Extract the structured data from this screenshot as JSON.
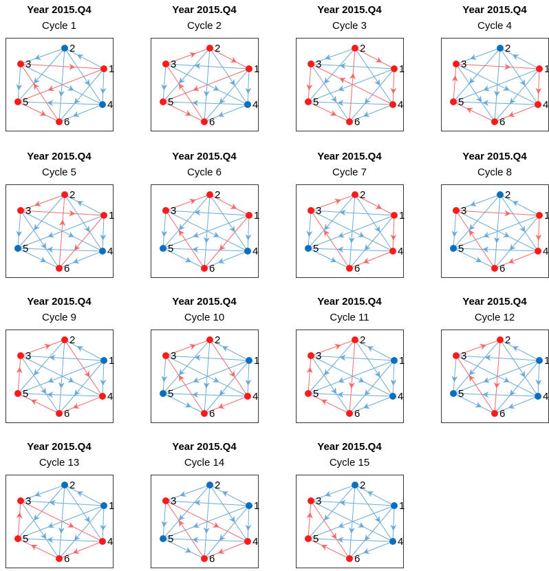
{
  "node_labels": [
    "1",
    "2",
    "3",
    "4",
    "5",
    "6"
  ],
  "node_colors": {
    "in_cycle": "#ff1a1a",
    "other": "#0b6fbf"
  },
  "edge_colors": {
    "in_cycle": "#f26a6a",
    "other": "#6aaad8"
  },
  "panels": [
    {
      "title": "Year 2015.Q4",
      "subtitle": "Cycle 1",
      "cycle": [
        "3",
        "1",
        "5",
        "6"
      ]
    },
    {
      "title": "Year 2015.Q4",
      "subtitle": "Cycle 2",
      "cycle": [
        "3",
        "2",
        "1",
        "5",
        "6"
      ]
    },
    {
      "title": "Year 2015.Q4",
      "subtitle": "Cycle 3",
      "cycle": [
        "2",
        "1",
        "4",
        "3",
        "5",
        "6"
      ]
    },
    {
      "title": "Year 2015.Q4",
      "subtitle": "Cycle 4",
      "cycle": [
        "3",
        "1",
        "4",
        "6",
        "5"
      ]
    },
    {
      "title": "Year 2015.Q4",
      "subtitle": "Cycle 5",
      "cycle": [
        "3",
        "1",
        "6",
        "2"
      ]
    },
    {
      "title": "Year 2015.Q4",
      "subtitle": "Cycle 6",
      "cycle": [
        "3",
        "2",
        "1",
        "6"
      ]
    },
    {
      "title": "Year 2015.Q4",
      "subtitle": "Cycle 7",
      "cycle": [
        "3",
        "2",
        "1",
        "4",
        "6"
      ]
    },
    {
      "title": "Year 2015.Q4",
      "subtitle": "Cycle 8",
      "cycle": [
        "3",
        "1",
        "4",
        "6"
      ]
    },
    {
      "title": "Year 2015.Q4",
      "subtitle": "Cycle 9",
      "cycle": [
        "3",
        "2",
        "4",
        "6",
        "5"
      ]
    },
    {
      "title": "Year 2015.Q4",
      "subtitle": "Cycle 10",
      "cycle": [
        "3",
        "2",
        "4",
        "6"
      ]
    },
    {
      "title": "Year 2015.Q4",
      "subtitle": "Cycle 11",
      "cycle": [
        "3",
        "2",
        "6",
        "5"
      ]
    },
    {
      "title": "Year 2015.Q4",
      "subtitle": "Cycle 12",
      "cycle": [
        "3",
        "2",
        "6"
      ]
    },
    {
      "title": "Year 2015.Q4",
      "subtitle": "Cycle 13",
      "cycle": [
        "3",
        "4",
        "6",
        "5"
      ]
    },
    {
      "title": "Year 2015.Q4",
      "subtitle": "Cycle 14",
      "cycle": [
        "3",
        "4",
        "6"
      ]
    },
    {
      "title": "Year 2015.Q4",
      "subtitle": "Cycle 15",
      "cycle": [
        "3",
        "6",
        "5"
      ]
    }
  ]
}
